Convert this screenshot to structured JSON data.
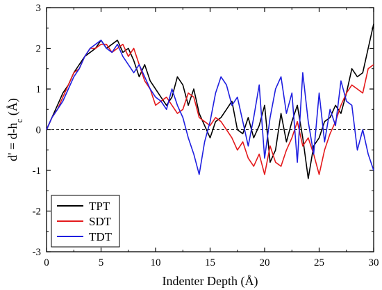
{
  "chart_data": {
    "type": "line",
    "title": "",
    "xlabel": "Indenter Depth (Å)",
    "ylabel": "d' = d-h_c (Å)",
    "ylabel_parts": {
      "main": "d' = d-h",
      "sub": "c",
      "unit": " (Å)"
    },
    "xlim": [
      0,
      30
    ],
    "ylim": [
      -3,
      3
    ],
    "xticks": [
      0,
      5,
      10,
      15,
      20,
      25,
      30
    ],
    "yticks": [
      -3,
      -2,
      -1,
      0,
      1,
      2,
      3
    ],
    "grid": false,
    "reference_line": {
      "y": 0,
      "style": "dashed"
    },
    "legend": {
      "position": "bottom-left"
    },
    "x": [
      0,
      0.5,
      1,
      1.5,
      2,
      2.5,
      3,
      3.5,
      4,
      4.5,
      5,
      5.5,
      6,
      6.5,
      7,
      7.5,
      8,
      8.5,
      9,
      9.5,
      10,
      10.5,
      11,
      11.5,
      12,
      12.5,
      13,
      13.5,
      14,
      14.5,
      15,
      15.5,
      16,
      16.5,
      17,
      17.5,
      18,
      18.5,
      19,
      19.5,
      20,
      20.5,
      21,
      21.5,
      22,
      22.5,
      23,
      23.5,
      24,
      24.5,
      25,
      25.5,
      26,
      26.5,
      27,
      27.5,
      28,
      28.5,
      29,
      29.5,
      30
    ],
    "series": [
      {
        "name": "TPT",
        "color": "#000000",
        "values": [
          0,
          0.3,
          0.6,
          0.9,
          1.1,
          1.4,
          1.6,
          1.8,
          1.9,
          2.0,
          2.2,
          2.0,
          2.1,
          2.2,
          1.9,
          2.0,
          1.7,
          1.3,
          1.6,
          1.2,
          1.0,
          0.8,
          0.6,
          0.8,
          1.3,
          1.1,
          0.6,
          1.0,
          0.4,
          0.1,
          -0.2,
          0.2,
          0.3,
          0.5,
          0.7,
          0.0,
          -0.1,
          0.3,
          -0.2,
          0.1,
          0.6,
          -0.8,
          -0.5,
          0.4,
          -0.3,
          0.2,
          0.6,
          -0.2,
          -1.2,
          -0.4,
          -0.2,
          0.2,
          0.3,
          0.6,
          0.4,
          0.9,
          1.5,
          1.3,
          1.4,
          2.0,
          2.6
        ]
      },
      {
        "name": "SDT",
        "color": "#e41a1c",
        "values": [
          0,
          0.3,
          0.5,
          0.8,
          1.1,
          1.4,
          1.5,
          1.8,
          2.0,
          2.0,
          2.1,
          2.1,
          1.9,
          2.0,
          2.1,
          1.8,
          2.0,
          1.6,
          1.2,
          1.0,
          0.6,
          0.7,
          0.8,
          0.6,
          0.4,
          0.5,
          0.9,
          0.8,
          0.3,
          0.2,
          0.1,
          0.3,
          0.2,
          0.0,
          -0.2,
          -0.5,
          -0.3,
          -0.7,
          -0.9,
          -0.6,
          -1.1,
          -0.4,
          -0.8,
          -0.9,
          -0.5,
          -0.2,
          0.2,
          -0.4,
          -0.2,
          -0.6,
          -1.1,
          -0.5,
          -0.1,
          0.2,
          0.6,
          0.9,
          1.1,
          1.0,
          0.9,
          1.5,
          1.6
        ]
      },
      {
        "name": "TDT",
        "color": "#1f1fe0",
        "values": [
          0,
          0.3,
          0.5,
          0.7,
          1.0,
          1.3,
          1.5,
          1.8,
          2.0,
          2.1,
          2.2,
          2.0,
          1.9,
          2.1,
          1.8,
          1.6,
          1.4,
          1.6,
          1.3,
          1.0,
          0.8,
          0.7,
          0.5,
          1.0,
          0.6,
          0.3,
          -0.2,
          -0.6,
          -1.1,
          -0.3,
          0.2,
          0.9,
          1.3,
          1.1,
          0.6,
          0.8,
          0.2,
          -0.4,
          0.3,
          1.1,
          -0.7,
          0.3,
          1.0,
          1.3,
          0.4,
          0.9,
          -0.8,
          1.4,
          0.2,
          -0.6,
          0.9,
          -0.3,
          0.5,
          0.1,
          1.2,
          0.7,
          0.6,
          -0.5,
          0.0,
          -0.6,
          -1.0
        ]
      }
    ]
  }
}
